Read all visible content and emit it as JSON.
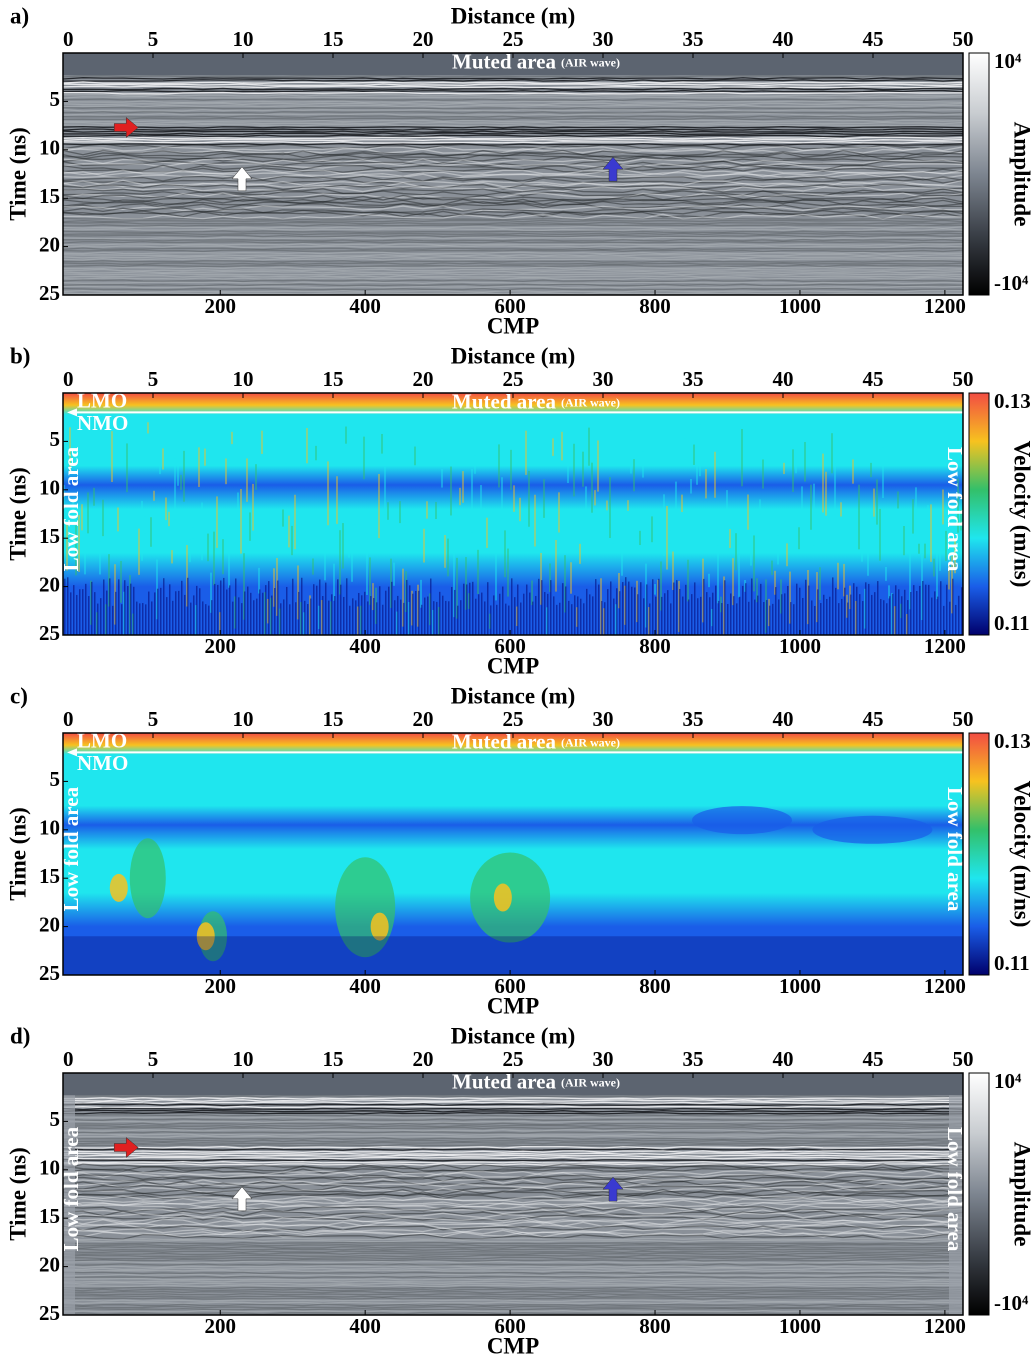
{
  "chart_data": [
    {
      "type": "amplitude-image",
      "panel_label": "a)",
      "x_label": "Distance (m)",
      "x2_label": "CMP",
      "y_label": "Time (ns)",
      "xlim": [
        0,
        50
      ],
      "xticks": [
        0,
        5,
        10,
        15,
        20,
        25,
        30,
        35,
        40,
        45,
        50
      ],
      "x2lim": [
        -17,
        1225
      ],
      "x2ticks": [
        200,
        400,
        600,
        800,
        1000,
        1200
      ],
      "ylim": [
        0,
        25
      ],
      "yticks": [
        5,
        10,
        15,
        20,
        25
      ],
      "colorbar_label": "Amplitude",
      "clim": [
        -10000,
        10000
      ],
      "cticks": [
        {
          "value": 10000,
          "label": "10⁴"
        },
        {
          "value": -10000,
          "label": "-10⁴"
        }
      ],
      "colors": [
        "#ffffff",
        "#c8ccd0",
        "#7d8590",
        "#3a3f47",
        "#000000"
      ],
      "muted_label": "Muted area",
      "muted_note": "(AIR wave)",
      "arrows": true
    },
    {
      "type": "velocity-image",
      "panel_label": "b)",
      "x_label": "Distance (m)",
      "x2_label": "CMP",
      "y_label": "Time (ns)",
      "xlim": [
        0,
        50
      ],
      "xticks": [
        0,
        5,
        10,
        15,
        20,
        25,
        30,
        35,
        40,
        45,
        50
      ],
      "x2lim": [
        -17,
        1225
      ],
      "x2ticks": [
        200,
        400,
        600,
        800,
        1000,
        1200
      ],
      "ylim": [
        0,
        25
      ],
      "yticks": [
        5,
        10,
        15,
        20,
        25
      ],
      "colorbar_label": "Velocity (m/ns)",
      "clim": [
        0.11,
        0.13
      ],
      "cticks": [
        0.13,
        0.11
      ],
      "colors": [
        "#f24d43",
        "#f7c21f",
        "#33c06a",
        "#1fe6ee",
        "#1a5de8",
        "#00006b"
      ],
      "muted_label": "Muted area",
      "muted_note": "(AIR wave)",
      "lmo": "LMO",
      "nmo": "NMO",
      "low_fold": "Low fold area",
      "texture": "noisy"
    },
    {
      "type": "velocity-image",
      "panel_label": "c)",
      "x_label": "Distance (m)",
      "x2_label": "CMP",
      "y_label": "Time (ns)",
      "xlim": [
        0,
        50
      ],
      "xticks": [
        0,
        5,
        10,
        15,
        20,
        25,
        30,
        35,
        40,
        45,
        50
      ],
      "x2lim": [
        -17,
        1225
      ],
      "x2ticks": [
        200,
        400,
        600,
        800,
        1000,
        1200
      ],
      "ylim": [
        0,
        25
      ],
      "yticks": [
        5,
        10,
        15,
        20,
        25
      ],
      "colorbar_label": "Velocity (m/ns)",
      "clim": [
        0.11,
        0.13
      ],
      "cticks": [
        0.13,
        0.11
      ],
      "colors": [
        "#f24d43",
        "#f7c21f",
        "#33c06a",
        "#1fe6ee",
        "#1a5de8",
        "#00006b"
      ],
      "muted_label": "Muted area",
      "muted_note": "(AIR wave)",
      "lmo": "LMO",
      "nmo": "NMO",
      "low_fold": "Low fold area",
      "texture": "smooth"
    },
    {
      "type": "amplitude-image",
      "panel_label": "d)",
      "x_label": "Distance (m)",
      "x2_label": "CMP",
      "y_label": "Time (ns)",
      "xlim": [
        0,
        50
      ],
      "xticks": [
        0,
        5,
        10,
        15,
        20,
        25,
        30,
        35,
        40,
        45,
        50
      ],
      "x2lim": [
        -17,
        1225
      ],
      "x2ticks": [
        200,
        400,
        600,
        800,
        1000,
        1200
      ],
      "ylim": [
        0,
        25
      ],
      "yticks": [
        5,
        10,
        15,
        20,
        25
      ],
      "colorbar_label": "Amplitude",
      "clim": [
        -10000,
        10000
      ],
      "cticks": [
        {
          "value": 10000,
          "label": "10⁴"
        },
        {
          "value": -10000,
          "label": "-10⁴"
        }
      ],
      "colors": [
        "#ffffff",
        "#c8ccd0",
        "#7d8590",
        "#3a3f47",
        "#000000"
      ],
      "muted_label": "Muted area",
      "muted_note": "(AIR wave)",
      "low_fold": "Low fold area",
      "arrows": true
    }
  ]
}
